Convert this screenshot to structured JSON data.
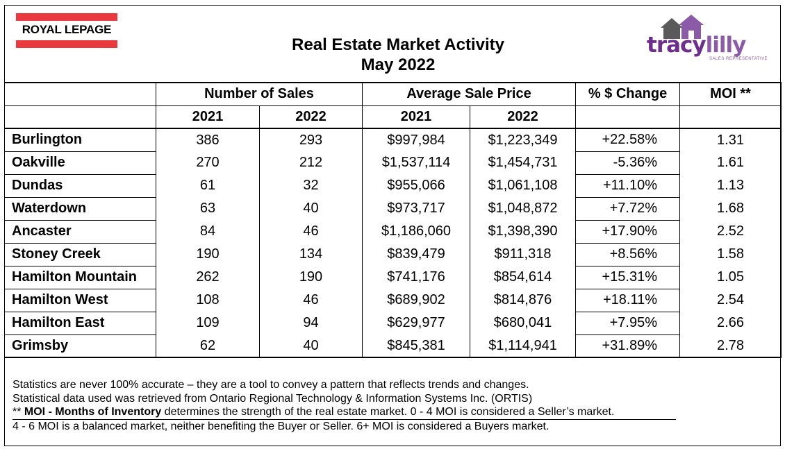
{
  "header": {
    "brand_left": "ROYAL LEPAGE",
    "title_line1": "Real Estate Market Activity",
    "title_line2": "May 2022",
    "brand_right_first": "tracy",
    "brand_right_second": "lilly",
    "brand_right_tagline": "SALES REPRESENTATIVE"
  },
  "columns": {
    "group_sales": "Number of Sales",
    "group_price": "Average Sale Price",
    "pct_change": "% $ Change",
    "moi": "MOI **",
    "year_a": "2021",
    "year_b": "2022"
  },
  "rows": [
    {
      "area": "Burlington",
      "sales_2021": "386",
      "sales_2022": "293",
      "price_2021": "$997,984",
      "price_2022": "$1,223,349",
      "pct": "+22.58%",
      "moi": "1.31"
    },
    {
      "area": "Oakville",
      "sales_2021": "270",
      "sales_2022": "212",
      "price_2021": "$1,537,114",
      "price_2022": "$1,454,731",
      "pct": "-5.36%",
      "moi": "1.61"
    },
    {
      "area": "Dundas",
      "sales_2021": "61",
      "sales_2022": "32",
      "price_2021": "$955,066",
      "price_2022": "$1,061,108",
      "pct": "+11.10%",
      "moi": "1.13"
    },
    {
      "area": "Waterdown",
      "sales_2021": "63",
      "sales_2022": "40",
      "price_2021": "$973,717",
      "price_2022": "$1,048,872",
      "pct": "+7.72%",
      "moi": "1.68"
    },
    {
      "area": "Ancaster",
      "sales_2021": "84",
      "sales_2022": "46",
      "price_2021": "$1,186,060",
      "price_2022": "$1,398,390",
      "pct": "+17.90%",
      "moi": "2.52"
    },
    {
      "area": "Stoney Creek",
      "sales_2021": "190",
      "sales_2022": "134",
      "price_2021": "$839,479",
      "price_2022": "$911,318",
      "pct": "+8.56%",
      "moi": "1.58"
    },
    {
      "area": "Hamilton Mountain",
      "sales_2021": "262",
      "sales_2022": "190",
      "price_2021": "$741,176",
      "price_2022": "$854,614",
      "pct": "+15.31%",
      "moi": "1.05"
    },
    {
      "area": "Hamilton West",
      "sales_2021": "108",
      "sales_2022": "46",
      "price_2021": "$689,902",
      "price_2022": "$814,876",
      "pct": "+18.11%",
      "moi": "2.54"
    },
    {
      "area": "Hamilton East",
      "sales_2021": "109",
      "sales_2022": "94",
      "price_2021": "$629,977",
      "price_2022": "$680,041",
      "pct": "+7.95%",
      "moi": "2.66"
    },
    {
      "area": "Grimsby",
      "sales_2021": "62",
      "sales_2022": "40",
      "price_2021": "$845,381",
      "price_2022": "$1,114,941",
      "pct": "+31.89%",
      "moi": "2.78"
    }
  ],
  "footer": {
    "line1": "Statistics are never 100% accurate – they are a tool to convey a pattern that reflects trends and changes.",
    "line2": "Statistical data used was retrieved from Ontario Regional Technology & Information Systems Inc. (ORTIS)",
    "line3_prefix": "** ",
    "line3_bold": "MOI - Months of Inventory",
    "line3_rest": " determines the strength of the real estate market. 0 - 4 MOI is considered a Seller’s market.",
    "line4": "4 - 6 MOI is a balanced market, neither benefiting the Buyer or Seller. 6+ MOI is considered a Buyers market."
  },
  "colors": {
    "rlp_red": "#ea3a3f",
    "tracy_purple": "#6d2e8c",
    "lilly_purple": "#8b5ba8",
    "house_grey": "#5a5a5a"
  }
}
